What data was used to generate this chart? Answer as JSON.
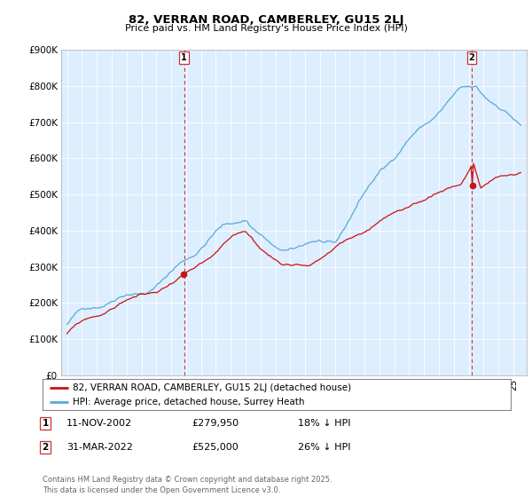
{
  "title": "82, VERRAN ROAD, CAMBERLEY, GU15 2LJ",
  "subtitle": "Price paid vs. HM Land Registry's House Price Index (HPI)",
  "legend_line1": "82, VERRAN ROAD, CAMBERLEY, GU15 2LJ (detached house)",
  "legend_line2": "HPI: Average price, detached house, Surrey Heath",
  "marker1_date": "11-NOV-2002",
  "marker1_price": 279950,
  "marker1_label": "18% ↓ HPI",
  "marker2_date": "31-MAR-2022",
  "marker2_price": 525000,
  "marker2_label": "26% ↓ HPI",
  "footer": "Contains HM Land Registry data © Crown copyright and database right 2025.\nThis data is licensed under the Open Government Licence v3.0.",
  "hpi_color": "#5ba8d8",
  "price_color": "#cc1111",
  "marker_line_color": "#cc3333",
  "chart_bg_color": "#ddeeff",
  "background_color": "#ffffff",
  "ylim": [
    0,
    900000
  ],
  "yticks": [
    0,
    100000,
    200000,
    300000,
    400000,
    500000,
    600000,
    700000,
    800000,
    900000
  ],
  "xlim_start": 1995.0,
  "xlim_end": 2025.5
}
